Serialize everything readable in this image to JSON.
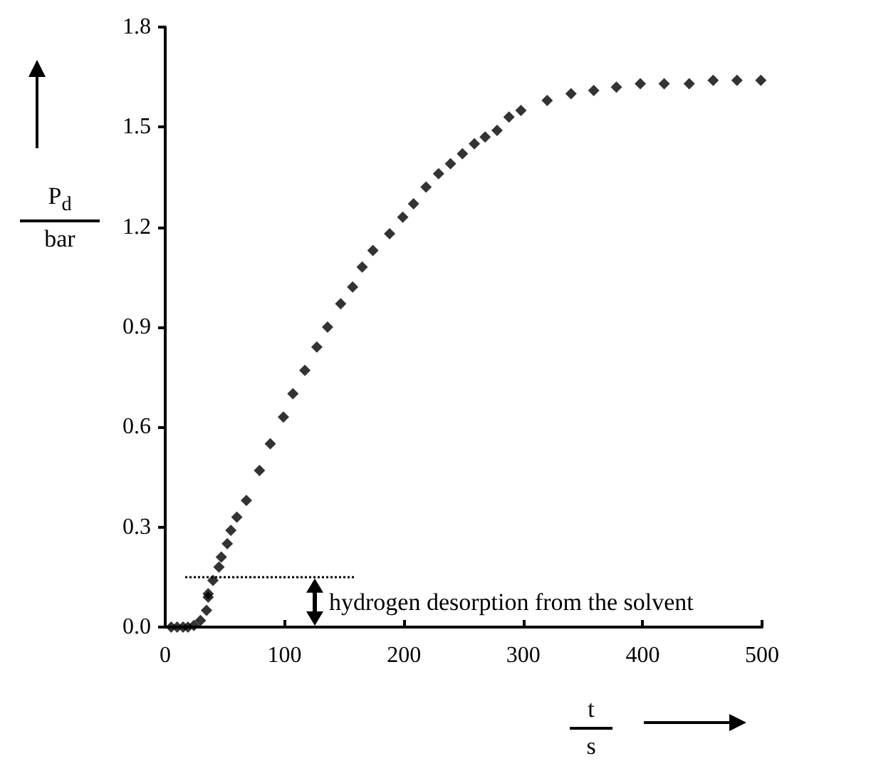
{
  "chart_data": {
    "type": "scatter",
    "xlabel": "t\ns",
    "ylabel": "P$_{d}$\nbar",
    "x": [
      5,
      10,
      15,
      19,
      24,
      29.5,
      34.6,
      36,
      36,
      40,
      45,
      47,
      52,
      55,
      60,
      68,
      79,
      88,
      99,
      107,
      117,
      127,
      136,
      147,
      157,
      165,
      174,
      188,
      199,
      208,
      218.5,
      229,
      239,
      249,
      259,
      268,
      278,
      288,
      298,
      320,
      340,
      359,
      378,
      398,
      418,
      439,
      459,
      479,
      499
    ],
    "series": [
      {
        "color": "#000000",
        "values": [
          0,
          0,
          0,
          0,
          0.005,
          0.02,
          0.05,
          0.09,
          0.1,
          0.14,
          0.18,
          0.21,
          0.25,
          0.29,
          0.33,
          0.38,
          0.47,
          0.55,
          0.63,
          0.7,
          0.77,
          0.84,
          0.9,
          0.97,
          1.02,
          1.08,
          1.13,
          1.18,
          1.23,
          1.27,
          1.32,
          1.36,
          1.39,
          1.42,
          1.45,
          1.47,
          1.49,
          1.53,
          1.55,
          1.58,
          1.6,
          1.61,
          1.62,
          1.63,
          1.63,
          1.63,
          1.64,
          1.64,
          1.64
        ]
      }
    ],
    "marker": "diamond",
    "xlim": [
      0,
      500
    ],
    "xticks": [
      0,
      100,
      200,
      300,
      400,
      500
    ],
    "ylim": [
      0,
      1.8
    ],
    "yticks": [
      {
        "value": 0,
        "label": "0.0"
      },
      {
        "value": 0.3,
        "label": "0.3"
      },
      {
        "value": 0.6,
        "label": "0.6"
      },
      {
        "value": 0.9,
        "label": "0.9"
      },
      {
        "value": 1.2,
        "label": "1.2"
      },
      {
        "value": 1.5,
        "label": "1.5"
      },
      {
        "value": 1.8,
        "label": "1.8"
      }
    ],
    "ref_lines": [
      {
        "axis": "y",
        "value": 0.15,
        "line_style": "dotted"
      }
    ],
    "annotations": [
      "hydrogen desorption from the solvent"
    ],
    "grid": false
  }
}
